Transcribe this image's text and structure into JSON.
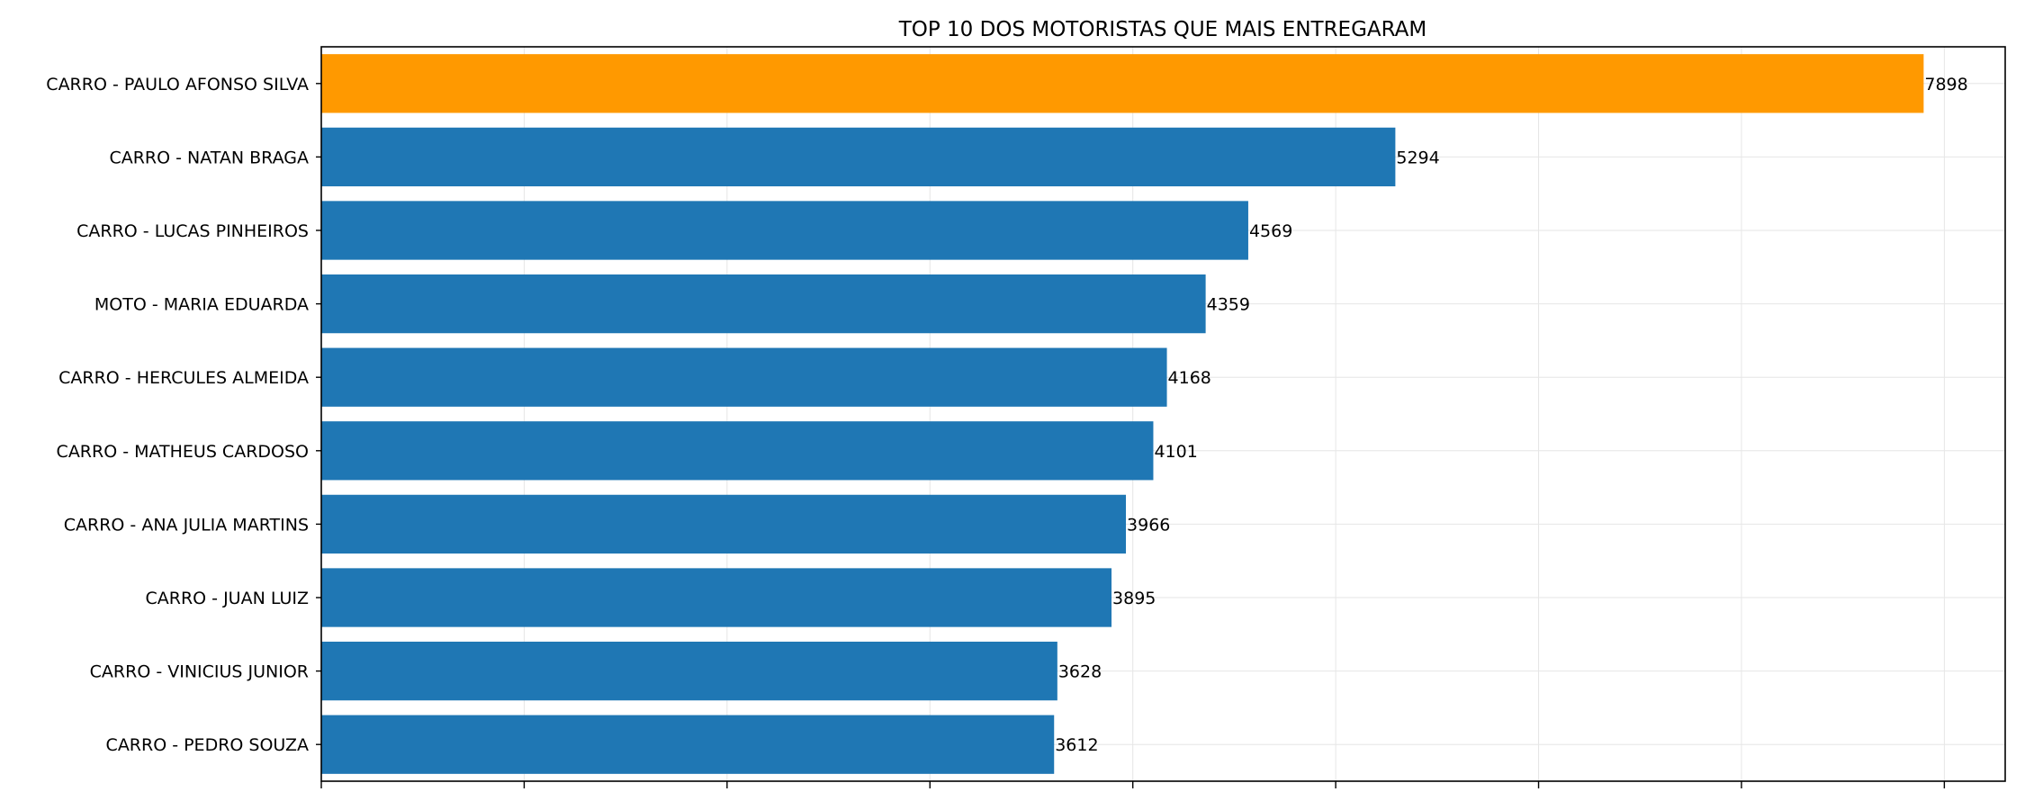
{
  "chart_data": {
    "type": "bar",
    "orientation": "horizontal",
    "title": "TOP 10 DOS MOTORISTAS QUE MAIS ENTREGARAM",
    "xlabel": "",
    "ylabel": "",
    "categories": [
      "CARRO - PAULO AFONSO SILVA",
      "CARRO - NATAN BRAGA",
      "CARRO - LUCAS PINHEIROS",
      "MOTO - MARIA EDUARDA",
      "CARRO - HERCULES ALMEIDA",
      "CARRO - MATHEUS CARDOSO",
      "CARRO - ANA JULIA MARTINS",
      "CARRO - JUAN LUIZ",
      "CARRO - VINICIUS JUNIOR",
      "CARRO - PEDRO SOUZA"
    ],
    "values": [
      7898,
      5294,
      4569,
      4359,
      4168,
      4101,
      3966,
      3895,
      3628,
      3612
    ],
    "data_labels": [
      "7898",
      "5294",
      "4569",
      "4359",
      "4168",
      "4101",
      "3966",
      "3895",
      "3628",
      "3612"
    ],
    "xlim": [
      0,
      8300
    ],
    "x_ticks": [
      0,
      1000,
      2000,
      3000,
      4000,
      5000,
      6000,
      7000,
      8000
    ],
    "x_tick_labels_visible": false,
    "grid": true,
    "highlight_index": 0,
    "colors": {
      "bar": "#1f77b4",
      "highlight": "#ff9900",
      "grid": "#e6e6e6",
      "axis": "#000000"
    }
  }
}
